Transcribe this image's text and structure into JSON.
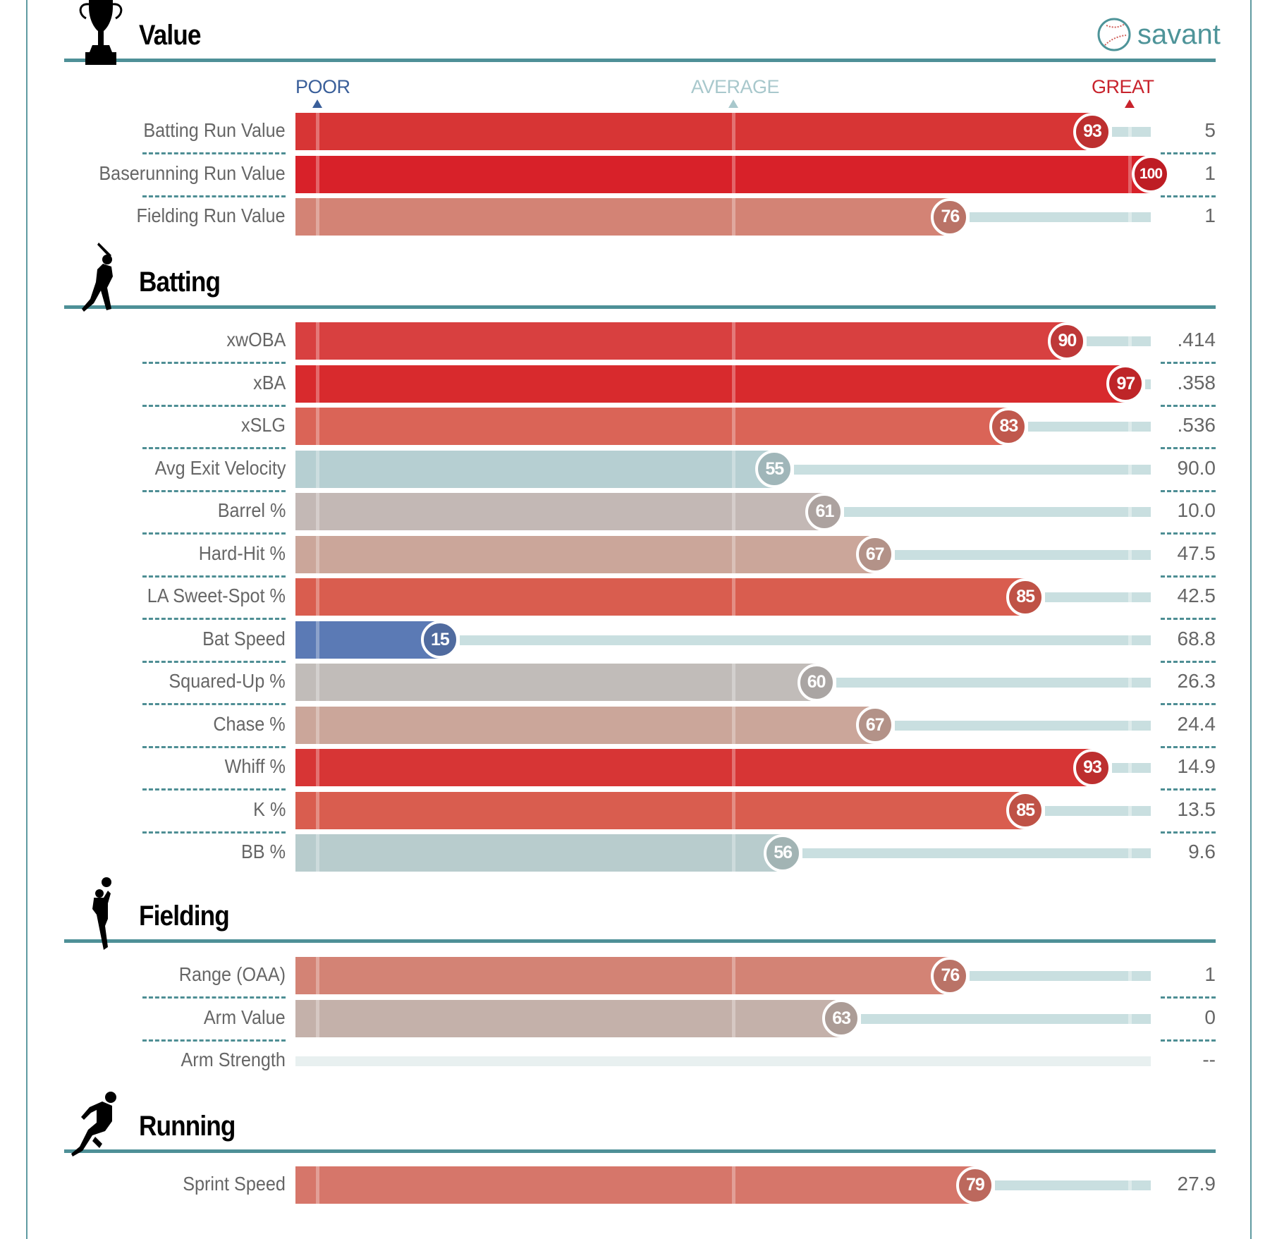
{
  "brand": {
    "name": "savant"
  },
  "scale": {
    "poor": "POOR",
    "average": "AVERAGE",
    "great": "GREAT",
    "poor_color": "#3a5f9a",
    "average_color": "#a8c8cc",
    "great_color": "#c8232c"
  },
  "chart_data": {
    "type": "bar",
    "title": "Percentile Rankings",
    "xlim": [
      0,
      100
    ],
    "sections": [
      {
        "title": "Value",
        "icon": "trophy-icon",
        "rows": [
          {
            "label": "Batting Run Value",
            "percentile": 93,
            "value": "5",
            "color": "#d73535"
          },
          {
            "label": "Baserunning Run Value",
            "percentile": 100,
            "value": "1",
            "color": "#d82129"
          },
          {
            "label": "Fielding Run Value",
            "percentile": 76,
            "value": "1",
            "color": "#d38375"
          }
        ]
      },
      {
        "title": "Batting",
        "icon": "batter-icon",
        "rows": [
          {
            "label": "xwOBA",
            "percentile": 90,
            "value": ".414",
            "color": "#d84040"
          },
          {
            "label": "xBA",
            "percentile": 97,
            "value": ".358",
            "color": "#d82a2d"
          },
          {
            "label": "xSLG",
            "percentile": 83,
            "value": ".536",
            "color": "#da6457"
          },
          {
            "label": "Avg Exit Velocity",
            "percentile": 55,
            "value": "90.0",
            "color": "#b6cfd2"
          },
          {
            "label": "Barrel %",
            "percentile": 61,
            "value": "10.0",
            "color": "#c3b8b5"
          },
          {
            "label": "Hard-Hit %",
            "percentile": 67,
            "value": "47.5",
            "color": "#cba69a"
          },
          {
            "label": "LA Sweet-Spot %",
            "percentile": 85,
            "value": "42.5",
            "color": "#d95d4f"
          },
          {
            "label": "Bat Speed",
            "percentile": 15,
            "value": "68.8",
            "color": "#5b7ab5"
          },
          {
            "label": "Squared-Up %",
            "percentile": 60,
            "value": "26.3",
            "color": "#c1bcb9"
          },
          {
            "label": "Chase %",
            "percentile": 67,
            "value": "24.4",
            "color": "#cba69a"
          },
          {
            "label": "Whiff %",
            "percentile": 93,
            "value": "14.9",
            "color": "#d73535"
          },
          {
            "label": "K %",
            "percentile": 85,
            "value": "13.5",
            "color": "#d95d4f"
          },
          {
            "label": "BB %",
            "percentile": 56,
            "value": "9.6",
            "color": "#b8cccd"
          }
        ]
      },
      {
        "title": "Fielding",
        "icon": "fielder-icon",
        "rows": [
          {
            "label": "Range (OAA)",
            "percentile": 76,
            "value": "1",
            "color": "#d38375"
          },
          {
            "label": "Arm Value",
            "percentile": 63,
            "value": "0",
            "color": "#c4b1aa"
          },
          {
            "label": "Arm Strength",
            "percentile": null,
            "value": "--",
            "color": "#e8f0f0"
          }
        ]
      },
      {
        "title": "Running",
        "icon": "runner-icon",
        "rows": [
          {
            "label": "Sprint Speed",
            "percentile": 79,
            "value": "27.9",
            "color": "#d6766a"
          }
        ]
      }
    ]
  }
}
